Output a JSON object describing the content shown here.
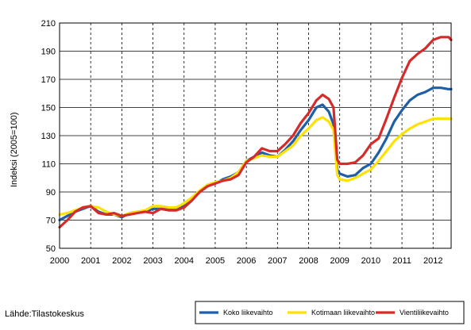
{
  "source": "Lähde:Tilastokeskus",
  "chart_data": {
    "type": "line",
    "title": "",
    "xlabel": "",
    "ylabel": "Indeksi (2005=100)",
    "xlim": [
      2000,
      2012.58
    ],
    "ylim": [
      50,
      210
    ],
    "yticks": [
      "50",
      "70",
      "90",
      "110",
      "130",
      "150",
      "170",
      "190",
      "210"
    ],
    "xticks": [
      "2000",
      "2001",
      "2002",
      "2003",
      "2004",
      "2005",
      "2006",
      "2007",
      "2008",
      "2009",
      "2010",
      "2011",
      "2012"
    ],
    "grid": "y-solid, x-dashed",
    "legend": "bottom-right",
    "x": [
      2000.0,
      2000.25,
      2000.5,
      2000.75,
      2001.0,
      2001.25,
      2001.5,
      2001.75,
      2002.0,
      2002.25,
      2002.5,
      2002.75,
      2003.0,
      2003.25,
      2003.5,
      2003.75,
      2004.0,
      2004.25,
      2004.5,
      2004.75,
      2005.0,
      2005.25,
      2005.5,
      2005.75,
      2006.0,
      2006.25,
      2006.5,
      2006.75,
      2007.0,
      2007.25,
      2007.5,
      2007.75,
      2008.0,
      2008.25,
      2008.45,
      2008.65,
      2008.8,
      2008.92,
      2009.0,
      2009.25,
      2009.5,
      2009.75,
      2010.0,
      2010.25,
      2010.5,
      2010.75,
      2011.0,
      2011.25,
      2011.5,
      2011.75,
      2012.0,
      2012.25,
      2012.5,
      2012.58
    ],
    "series": [
      {
        "name": "Koko liikevaihto",
        "color": "#1f5fa8",
        "values": [
          70,
          73,
          76,
          78,
          80,
          76,
          74,
          74,
          72,
          75,
          76,
          76,
          78,
          78,
          78,
          78,
          80,
          85,
          90,
          95,
          96,
          99,
          101,
          104,
          112,
          115,
          118,
          116,
          115,
          120,
          126,
          134,
          141,
          150,
          152,
          147,
          138,
          106,
          103,
          101,
          102,
          107,
          110,
          118,
          128,
          140,
          148,
          155,
          159,
          161,
          164,
          164,
          163,
          163
        ]
      },
      {
        "name": "Kotimaan liikevaihto",
        "color": "#ffe100",
        "values": [
          74,
          75,
          77,
          79,
          80,
          79,
          76,
          74,
          73,
          75,
          76,
          77,
          80,
          80,
          79,
          79,
          82,
          86,
          91,
          95,
          97,
          98,
          100,
          104,
          112,
          114,
          116,
          115,
          115,
          119,
          123,
          130,
          135,
          141,
          143,
          140,
          134,
          102,
          99,
          98,
          100,
          103,
          106,
          112,
          119,
          126,
          131,
          135,
          138,
          140,
          142,
          142,
          142,
          142
        ]
      },
      {
        "name": "Vientiliikevaihto",
        "color": "#d62b2b",
        "values": [
          65,
          70,
          76,
          79,
          80,
          75,
          74,
          75,
          73,
          74,
          75,
          76,
          75,
          78,
          77,
          77,
          79,
          84,
          90,
          94,
          96,
          98,
          99,
          102,
          111,
          115,
          121,
          119,
          119,
          124,
          130,
          139,
          146,
          155,
          159,
          156,
          150,
          113,
          110,
          110,
          111,
          116,
          124,
          128,
          142,
          157,
          171,
          183,
          188,
          192,
          198,
          200,
          200,
          198
        ]
      }
    ]
  }
}
